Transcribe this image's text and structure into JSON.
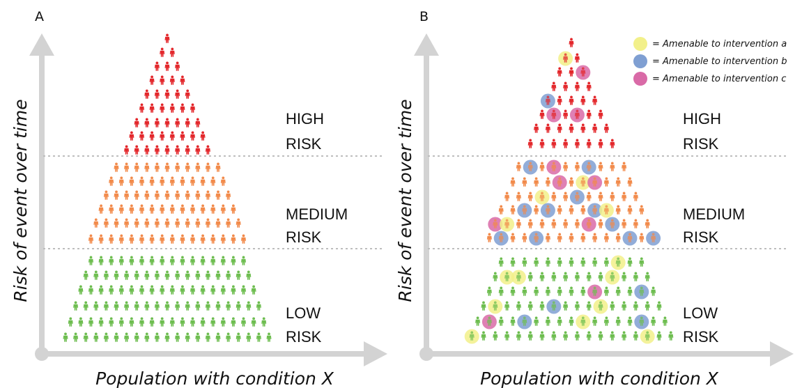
{
  "panels": [
    {
      "letter": "A",
      "x_label": "Population with condition X",
      "y_label": "Risk of event over time"
    },
    {
      "letter": "B",
      "x_label": "Population with condition X",
      "y_label": "Risk of event over time"
    }
  ],
  "risk_levels": [
    {
      "line1": "HIGH",
      "line2": "RISK",
      "color": "#e3262a"
    },
    {
      "line1": "MEDIUM",
      "line2": "RISK",
      "color": "#f28a4a"
    },
    {
      "line1": "LOW",
      "line2": "RISK",
      "color": "#6dbd4f"
    }
  ],
  "legend": [
    {
      "label": "= Amenable to intervention a",
      "color": "#f2f08a"
    },
    {
      "label": "= Amenable to intervention b",
      "color": "#7f9fd2"
    },
    {
      "label": "= Amenable to intervention c",
      "color": "#d96aa7"
    }
  ],
  "colors": {
    "axis": "#d3d3d3",
    "divider": "#bdbdbd"
  },
  "icon": "person-icon"
}
